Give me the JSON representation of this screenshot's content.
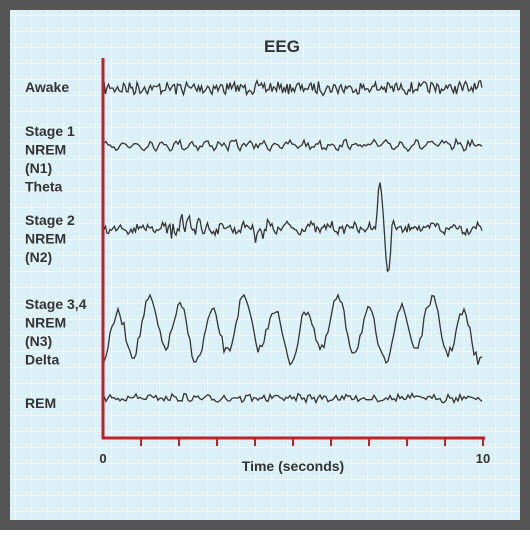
{
  "title": "EEG",
  "rows": [
    {
      "label": [
        "Awake"
      ]
    },
    {
      "label": [
        "Stage 1",
        "NREM",
        "(N1)",
        "Theta"
      ]
    },
    {
      "label": [
        "Stage 2",
        "NREM",
        "(N2)"
      ]
    },
    {
      "label": [
        "Stage 3,4",
        "NREM",
        "(N3)",
        "Delta"
      ]
    },
    {
      "label": [
        "REM"
      ]
    }
  ],
  "x_axis": {
    "label": "Time (seconds)",
    "xlim": [
      0,
      10
    ],
    "xticks": [
      0,
      10
    ]
  }
}
